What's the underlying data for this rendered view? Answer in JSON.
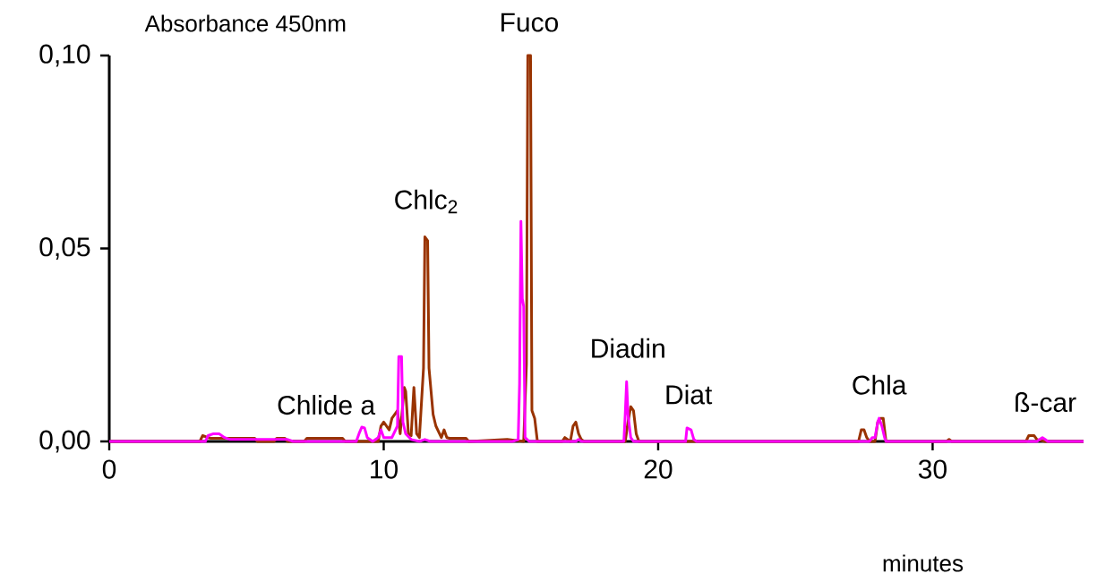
{
  "chart_data": {
    "type": "line",
    "xlabel": "minutes",
    "ylabel": "Absorbance 450nm",
    "xlim": [
      0,
      35.5
    ],
    "ylim": [
      0,
      0.1
    ],
    "xticks": [
      0,
      10,
      20,
      30
    ],
    "yticks": [
      {
        "value": 0,
        "label": "0,00"
      },
      {
        "value": 0.05,
        "label": "0,05"
      },
      {
        "value": 0.1,
        "label": "0,10"
      }
    ],
    "marker": "none",
    "line_style": "solid",
    "series": [
      {
        "color": "#993300",
        "x": [
          0,
          3.3,
          3.4,
          3.6,
          3.7,
          5.3,
          5.4,
          6.0,
          6.1,
          6.4,
          6.5,
          7.1,
          7.2,
          8.5,
          8.6,
          9.8,
          9.9,
          10.0,
          10.2,
          10.3,
          10.5,
          10.6,
          10.75,
          10.8,
          10.9,
          11.0,
          11.1,
          11.2,
          11.3,
          11.45,
          11.5,
          11.6,
          11.65,
          11.8,
          11.9,
          12.1,
          12.2,
          12.3,
          12.4,
          13.0,
          13.1,
          14.5,
          15.1,
          15.2,
          15.25,
          15.35,
          15.4,
          15.5,
          15.6,
          16.5,
          16.6,
          16.8,
          16.9,
          17.0,
          17.1,
          17.2,
          17.3,
          18.8,
          18.9,
          19.0,
          19.1,
          19.2,
          19.3,
          27.3,
          27.4,
          27.5,
          27.6,
          27.7,
          27.9,
          28.0,
          28.1,
          28.2,
          28.3,
          30.5,
          30.6,
          30.7,
          33.4,
          33.5,
          33.7,
          33.8,
          34.1,
          35.5
        ],
        "values": [
          0,
          0,
          0.0015,
          0.001,
          0.0008,
          0.0008,
          0,
          0,
          0.0008,
          0.0008,
          0,
          0,
          0.0008,
          0.0008,
          0,
          0,
          0.004,
          0.005,
          0.003,
          0.006,
          0.008,
          0.002,
          0.014,
          0.013,
          0.002,
          0.0015,
          0.014,
          0.002,
          0.001,
          0.019,
          0.053,
          0.052,
          0.019,
          0.007,
          0.004,
          0.001,
          0.003,
          0.001,
          0.0008,
          0.0008,
          0,
          0.0005,
          0,
          0.02,
          0.1,
          0.1,
          0.008,
          0.006,
          0,
          0,
          0.001,
          0,
          0.004,
          0.005,
          0.002,
          0.0005,
          0,
          0,
          0.005,
          0.009,
          0.008,
          0.002,
          0,
          0,
          0.003,
          0.003,
          0.001,
          0,
          0,
          0.005,
          0.006,
          0.006,
          0,
          0,
          0.0005,
          0,
          0,
          0.0015,
          0.0015,
          0.0005,
          0,
          0
        ]
      },
      {
        "color": "#ff00ff",
        "x": [
          0,
          3.5,
          3.6,
          3.8,
          4.0,
          4.2,
          4.4,
          6.5,
          6.7,
          9.0,
          9.1,
          9.2,
          9.3,
          9.4,
          9.6,
          9.8,
          9.9,
          10.0,
          10.3,
          10.5,
          10.55,
          10.65,
          10.7,
          10.8,
          11.0,
          11.3,
          11.5,
          11.7,
          14.7,
          14.9,
          14.95,
          15.0,
          15.05,
          15.1,
          15.15,
          15.3,
          17.0,
          17.1,
          17.2,
          18.75,
          18.8,
          18.85,
          18.9,
          19.0,
          19.1,
          21.0,
          21.05,
          21.2,
          21.3,
          21.4,
          27.7,
          27.8,
          27.9,
          28.0,
          28.05,
          28.15,
          28.25,
          28.3,
          33.8,
          33.9,
          34.0,
          34.1,
          34.2,
          35.5
        ],
        "values": [
          0,
          0,
          0.0015,
          0.002,
          0.002,
          0.001,
          0.0005,
          0.0005,
          0,
          0,
          0.002,
          0.0037,
          0.0035,
          0.001,
          0,
          0.001,
          0.003,
          0.001,
          0.001,
          0.004,
          0.022,
          0.022,
          0.005,
          0.002,
          0.0005,
          0,
          0.0005,
          0,
          0,
          0.0005,
          0.015,
          0.057,
          0.037,
          0.035,
          0.001,
          0,
          0,
          0.0005,
          0,
          0,
          0.007,
          0.0155,
          0.007,
          0.001,
          0,
          0,
          0.0035,
          0.003,
          0.0005,
          0,
          0,
          0.001,
          0.001,
          0.005,
          0.006,
          0.004,
          0.001,
          0,
          0,
          0.0005,
          0.001,
          0.0005,
          0,
          0
        ]
      }
    ],
    "annotations": [
      {
        "text": "Chlide a",
        "x": 7.9,
        "y": 0.0008
      },
      {
        "text": "Chlc$_{2}$",
        "x": 11.55,
        "y": 0.053
      },
      {
        "text": "Fuco",
        "x": 15.3,
        "y": 0.1
      },
      {
        "text": "Diadin",
        "x": 18.9,
        "y": 0.0155
      },
      {
        "text": "Diat",
        "x": 21.1,
        "y": 0.0035
      },
      {
        "text": "Chla",
        "x": 28.05,
        "y": 0.006
      },
      {
        "text": "ß-car",
        "x": 34.1,
        "y": 0.0015
      }
    ]
  }
}
